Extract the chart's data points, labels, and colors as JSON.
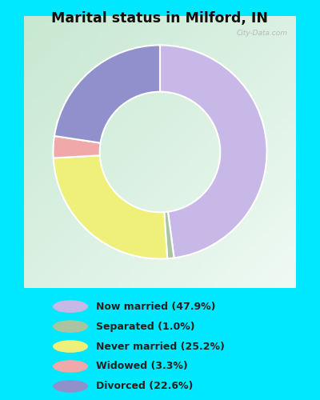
{
  "title": "Marital status in Milford, IN",
  "slices": [
    47.9,
    1.0,
    25.2,
    3.3,
    22.6
  ],
  "labels": [
    "Now married (47.9%)",
    "Separated (1.0%)",
    "Never married (25.2%)",
    "Widowed (3.3%)",
    "Divorced (22.6%)"
  ],
  "colors": [
    "#c8b8e8",
    "#a8c4a0",
    "#eef07a",
    "#f0a8a8",
    "#9090cc"
  ],
  "bg_cyan": "#00e8ff",
  "bg_chart_tl": "#d8eedc",
  "bg_chart_br": "#f0f8f0",
  "title_color": "#111111",
  "legend_text_color": "#222222",
  "watermark": "City-Data.com"
}
